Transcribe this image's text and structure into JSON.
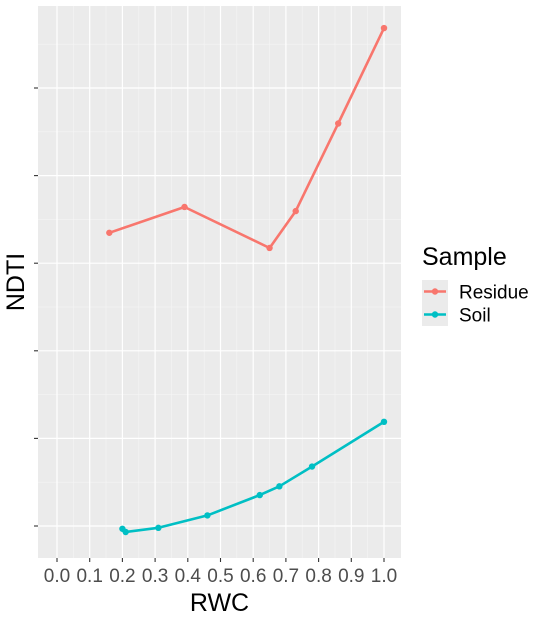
{
  "chart_data": {
    "type": "line",
    "xlabel": "RWC",
    "ylabel": "NDTI",
    "xlim": [
      -0.05,
      1.05
    ],
    "ylim": [
      0,
      100
    ],
    "x_ticks": [
      0.0,
      0.1,
      0.2,
      0.3,
      0.4,
      0.5,
      0.6,
      0.7,
      0.8,
      0.9,
      1.0
    ],
    "x_tick_labels": [
      "0.0",
      "0.1",
      "0.2",
      "0.3",
      "0.4",
      "0.5",
      "0.6",
      "0.7",
      "0.8",
      "0.9",
      "1.0"
    ],
    "y_ticks": [
      3,
      22,
      41,
      60,
      79,
      98
    ],
    "y_tick_labels": [
      "",
      "",
      "",
      "",
      "",
      ""
    ],
    "grid": true,
    "legend": {
      "title": "Sample",
      "position": "right"
    },
    "series": [
      {
        "name": "Residue",
        "color": "#F8766D",
        "points": [
          {
            "x": 0.16,
            "y": 66.6
          },
          {
            "x": 0.39,
            "y": 72.2
          },
          {
            "x": 0.65,
            "y": 63.3
          },
          {
            "x": 0.73,
            "y": 71.3
          },
          {
            "x": 0.86,
            "y": 90.3
          },
          {
            "x": 1.0,
            "y": 111.0
          }
        ]
      },
      {
        "name": "Soil",
        "color": "#00BFC4",
        "points": [
          {
            "x": 0.2,
            "y": 2.4
          },
          {
            "x": 0.21,
            "y": 1.7
          },
          {
            "x": 0.31,
            "y": 2.6
          },
          {
            "x": 0.46,
            "y": 5.3
          },
          {
            "x": 0.62,
            "y": 9.7
          },
          {
            "x": 0.68,
            "y": 11.6
          },
          {
            "x": 0.78,
            "y": 15.9
          },
          {
            "x": 1.0,
            "y": 25.6
          }
        ]
      }
    ]
  }
}
